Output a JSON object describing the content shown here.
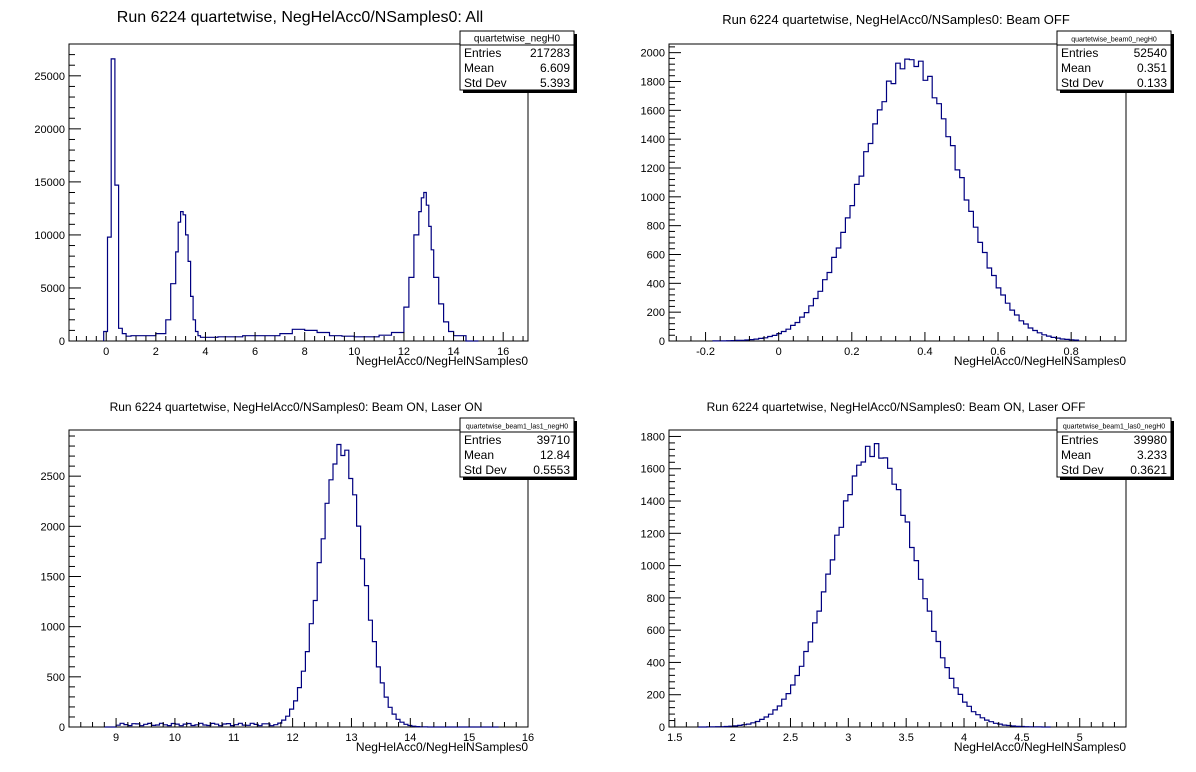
{
  "colors": {
    "histogram": "#000080",
    "axis": "#000000",
    "background": "#ffffff"
  },
  "chart_data": [
    {
      "type": "histogram",
      "title": "Run 6224 quartetwise, NegHelAcc0/NSamples0: All",
      "xlabel": "NegHelAcc0/NegHelNSamples0",
      "ylabel": "",
      "xlim": [
        -1.5,
        17
      ],
      "ylim": [
        0,
        28000
      ],
      "xticks": [
        0,
        2,
        4,
        6,
        8,
        10,
        12,
        14,
        16
      ],
      "yticks": [
        0,
        5000,
        10000,
        15000,
        20000,
        25000
      ],
      "grid": false,
      "stats_box": {
        "name": "quartetwise_negH0",
        "rows": [
          {
            "label": "Entries",
            "value": "217283"
          },
          {
            "label": "Mean",
            "value": "6.609"
          },
          {
            "label": "Std Dev",
            "value": "5.393"
          }
        ]
      },
      "bin_edges": [
        -0.1,
        0.05,
        0.2,
        0.35,
        0.5,
        0.65,
        0.8,
        1.0,
        1.5,
        2.0,
        2.4,
        2.6,
        2.8,
        2.9,
        3.0,
        3.1,
        3.2,
        3.3,
        3.4,
        3.5,
        3.6,
        3.7,
        3.8,
        4.0,
        4.5,
        5.0,
        5.5,
        6.0,
        6.5,
        7.0,
        7.5,
        8.0,
        8.5,
        9.0,
        9.5,
        10.0,
        10.5,
        11.0,
        11.5,
        12.0,
        12.2,
        12.4,
        12.6,
        12.7,
        12.8,
        12.9,
        13.0,
        13.1,
        13.2,
        13.4,
        13.6,
        13.8,
        14.0,
        14.5,
        15.0
      ],
      "counts": [
        900,
        9800,
        26600,
        14700,
        1200,
        700,
        450,
        500,
        500,
        700,
        2000,
        5400,
        8400,
        11200,
        12200,
        11900,
        10000,
        7500,
        4200,
        2000,
        900,
        500,
        350,
        350,
        400,
        400,
        500,
        500,
        500,
        700,
        1100,
        1000,
        800,
        500,
        450,
        400,
        400,
        550,
        800,
        3200,
        6000,
        10000,
        12200,
        13500,
        14000,
        12800,
        10800,
        8600,
        6000,
        3500,
        1800,
        900,
        500,
        0
      ]
    },
    {
      "type": "histogram",
      "title": "Run 6224 quartetwise, NegHelAcc0/NSamples0: Beam OFF",
      "xlabel": "NegHelAcc0/NegHelNSamples0",
      "ylabel": "",
      "xlim": [
        -0.3,
        0.95
      ],
      "ylim": [
        0,
        2060
      ],
      "xticks": [
        -0.2,
        0,
        0.2,
        0.4,
        0.6,
        0.8
      ],
      "yticks": [
        0,
        200,
        400,
        600,
        800,
        1000,
        1200,
        1400,
        1600,
        1800,
        2000
      ],
      "grid": false,
      "stats_box": {
        "name": "quartetwise_beam0_negH0",
        "rows": [
          {
            "label": "Entries",
            "value": "52540"
          },
          {
            "label": "Mean",
            "value": "0.351"
          },
          {
            "label": "Std Dev",
            "value": "0.133"
          }
        ]
      },
      "gauss": {
        "mean": 0.36,
        "sigma": 0.133,
        "peak": 1945,
        "from": -0.18,
        "to": 0.82,
        "bins": 80
      }
    },
    {
      "type": "histogram",
      "title": "Run 6224 quartetwise, NegHelAcc0/NSamples0: Beam ON, Laser ON",
      "xlabel": "NegHelAcc0/NegHelNSamples0",
      "ylabel": "",
      "xlim": [
        8.2,
        16
      ],
      "ylim": [
        0,
        2960
      ],
      "xticks": [
        9,
        10,
        11,
        12,
        13,
        14,
        15,
        16
      ],
      "yticks": [
        0,
        500,
        1000,
        1500,
        2000,
        2500
      ],
      "grid": false,
      "stats_box": {
        "name": "quartetwise_beam1_las1_negH0",
        "rows": [
          {
            "label": "Entries",
            "value": "39710"
          },
          {
            "label": "Mean",
            "value": "12.84"
          },
          {
            "label": "Std Dev",
            "value": "0.5553"
          }
        ]
      },
      "gauss": {
        "mean": 12.83,
        "sigma": 0.36,
        "peak": 2780,
        "from": 8.8,
        "to": 15.5,
        "bins": 100,
        "baseline": 25,
        "baseline_from": 9.0,
        "baseline_to": 11.6
      }
    },
    {
      "type": "histogram",
      "title": "Run 6224 quartetwise, NegHelAcc0/NSamples0: Beam ON, Laser OFF",
      "xlabel": "NegHelAcc0/NegHelNSamples0",
      "ylabel": "",
      "xlim": [
        1.45,
        5.4
      ],
      "ylim": [
        0,
        1840
      ],
      "xticks": [
        1.5,
        2,
        2.5,
        3,
        3.5,
        4,
        4.5,
        5
      ],
      "yticks": [
        0,
        200,
        400,
        600,
        800,
        1000,
        1200,
        1400,
        1600,
        1800
      ],
      "grid": false,
      "stats_box": {
        "name": "quartetwise_beam1_las0_negH0",
        "rows": [
          {
            "label": "Entries",
            "value": "39980"
          },
          {
            "label": "Mean",
            "value": "3.233"
          },
          {
            "label": "Std Dev",
            "value": "0.3621"
          }
        ]
      },
      "gauss": {
        "mean": 3.22,
        "sigma": 0.36,
        "peak": 1720,
        "from": 1.7,
        "to": 4.75,
        "bins": 80
      }
    }
  ]
}
